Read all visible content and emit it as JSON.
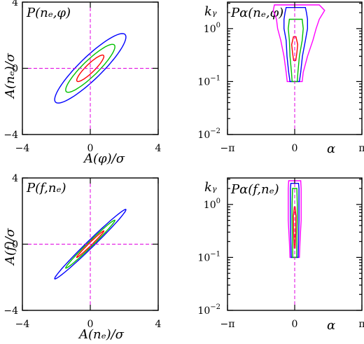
{
  "chart_data": [
    {
      "panel": "top-left",
      "type": "contour",
      "title": "P(n_e, φ)",
      "title_text": "P(nₑ,φ)",
      "xlabel": "A(φ)/σ",
      "ylabel": "A(nₑ)/σ",
      "xlim": [
        -4,
        4
      ],
      "ylim": [
        -4,
        4
      ],
      "x_ticks": [
        {
          "value": -4,
          "label": "−4"
        },
        {
          "value": 0,
          "label": "0"
        },
        {
          "value": 4,
          "label": "4"
        }
      ],
      "y_ticks": [
        {
          "value": -4,
          "label": "−4"
        },
        {
          "value": 0,
          "label": "0"
        },
        {
          "value": 4,
          "label": "4"
        }
      ],
      "reference_lines": {
        "x": 0,
        "y": 0
      },
      "correlation": 0.9,
      "contour_levels": [
        {
          "color": "#0000ff",
          "scale": 2.1
        },
        {
          "color": "#00c000",
          "scale": 1.45
        },
        {
          "color": "#ff0000",
          "scale": 0.8
        }
      ]
    },
    {
      "panel": "top-right",
      "type": "contour",
      "title_text": "Pα(nₑ,φ)",
      "ylabel": "kᵧ",
      "xlabel": "α",
      "xlim": [
        -3.1416,
        3.1416
      ],
      "ylim_log10": [
        -2,
        0.5
      ],
      "x_ticks": [
        {
          "value": -3.1416,
          "label": "−π"
        },
        {
          "value": 0,
          "label": "0"
        },
        {
          "value": 3.1416,
          "label": "π"
        }
      ],
      "y_ticks": [
        {
          "value": 1,
          "exp": "0"
        },
        {
          "value": 0.1,
          "exp": "−1"
        },
        {
          "value": 0.01,
          "exp": "−2"
        }
      ],
      "reference_lines": {
        "x": 0
      },
      "ky_range": [
        0.1,
        2.5
      ],
      "contours": [
        {
          "color": "#ff00ff",
          "ky": [
            0.1,
            0.15,
            0.3,
            0.6,
            1.0,
            1.5,
            2.2,
            2.8
          ],
          "halfwidth": [
            0.35,
            0.4,
            0.55,
            0.75,
            0.9,
            1.0,
            1.2,
            1.05
          ],
          "center": [
            0.0,
            0.0,
            0.05,
            0.1,
            0.1,
            0.15,
            0.2,
            0.1
          ]
        },
        {
          "color": "#0000ff",
          "ky": [
            0.1,
            0.15,
            0.3,
            0.6,
            1.0,
            1.5,
            2.0,
            2.5
          ],
          "halfwidth": [
            0.22,
            0.28,
            0.36,
            0.45,
            0.55,
            0.55,
            0.5,
            0.45
          ],
          "center": [
            0.0,
            0.0,
            0.0,
            0.05,
            0.05,
            0.05,
            0.05,
            0.05
          ]
        },
        {
          "color": "#00c000",
          "ky": [
            0.1,
            0.15,
            0.3,
            0.6,
            1.0,
            1.5
          ],
          "halfwidth": [
            0.12,
            0.15,
            0.22,
            0.3,
            0.35,
            0.3
          ],
          "center": [
            0.0,
            0.0,
            0.0,
            0.05,
            0.05,
            0.05
          ]
        },
        {
          "color": "#ff0000",
          "ky": [
            0.25,
            0.35,
            0.5,
            0.7
          ],
          "halfwidth": [
            0.05,
            0.1,
            0.14,
            0.06
          ],
          "center": [
            0.0,
            0.0,
            0.0,
            0.0
          ]
        }
      ]
    },
    {
      "panel": "bottom-left",
      "type": "contour",
      "title_text": "P(f,nₑ)",
      "xlabel": "A(nₑ)/σ",
      "ylabel": "A(f)/σ",
      "xlim": [
        -4,
        4
      ],
      "ylim": [
        -4,
        4
      ],
      "x_ticks": [
        {
          "value": -4,
          "label": "−4"
        },
        {
          "value": 0,
          "label": "0"
        },
        {
          "value": 4,
          "label": "4"
        }
      ],
      "y_ticks": [
        {
          "value": -4,
          "label": "−4"
        },
        {
          "value": 0,
          "label": "0"
        },
        {
          "value": 4,
          "label": "4"
        }
      ],
      "reference_lines": {
        "x": 0,
        "y": 0
      },
      "correlation": 0.99,
      "contour_levels": [
        {
          "color": "#0000ff",
          "scale": 2.1
        },
        {
          "color": "#00c000",
          "scale": 1.45
        },
        {
          "color": "#ff0000",
          "scale": 0.8
        }
      ]
    },
    {
      "panel": "bottom-right",
      "type": "contour",
      "title_text": "Pα(f,nₑ)",
      "ylabel": "kᵧ",
      "xlabel": "α",
      "xlim": [
        -3.1416,
        3.1416
      ],
      "ylim_log10": [
        -2,
        0.5
      ],
      "x_ticks": [
        {
          "value": -3.1416,
          "label": "−π"
        },
        {
          "value": 0,
          "label": "0"
        },
        {
          "value": 3.1416,
          "label": "π"
        }
      ],
      "y_ticks": [
        {
          "value": 1,
          "exp": "0"
        },
        {
          "value": 0.1,
          "exp": "−1"
        },
        {
          "value": 0.01,
          "exp": "−2"
        }
      ],
      "reference_lines": {
        "x": 0
      },
      "contours": [
        {
          "color": "#ff00ff",
          "ky": [
            0.1,
            0.2,
            0.5,
            1.0,
            2.0,
            2.8
          ],
          "halfwidth": [
            0.22,
            0.25,
            0.3,
            0.3,
            0.3,
            0.28
          ],
          "center": [
            0.0,
            0.0,
            0.0,
            0.0,
            0.0,
            0.0
          ]
        },
        {
          "color": "#0000ff",
          "ky": [
            0.1,
            0.2,
            0.5,
            1.0,
            2.0,
            2.5
          ],
          "halfwidth": [
            0.16,
            0.18,
            0.2,
            0.2,
            0.2,
            0.18
          ],
          "center": [
            0.0,
            0.0,
            0.0,
            0.0,
            0.0,
            0.0
          ]
        },
        {
          "color": "#00c000",
          "ky": [
            0.1,
            0.2,
            0.5,
            1.0,
            2.0
          ],
          "halfwidth": [
            0.09,
            0.1,
            0.12,
            0.12,
            0.1
          ],
          "center": [
            0.0,
            0.0,
            0.0,
            0.0,
            0.0
          ]
        },
        {
          "color": "#ff0000",
          "ky": [
            0.15,
            0.3,
            0.6,
            0.9
          ],
          "halfwidth": [
            0.02,
            0.05,
            0.06,
            0.02
          ],
          "center": [
            0.0,
            0.0,
            0.0,
            0.0
          ]
        }
      ]
    }
  ]
}
